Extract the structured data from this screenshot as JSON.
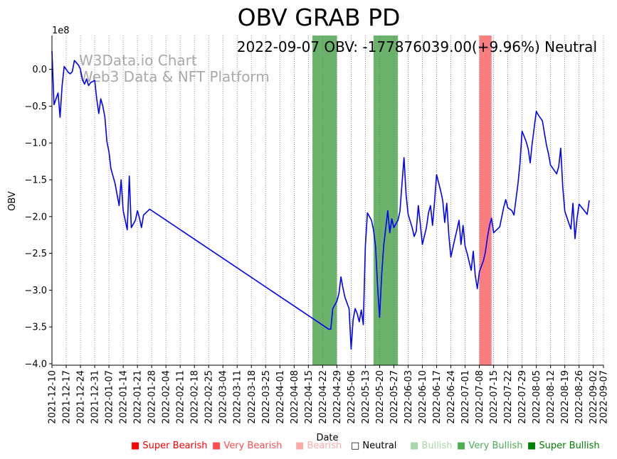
{
  "chart_data": {
    "type": "line",
    "title": "OBV GRAB PD",
    "annotation": "2022-09-07 OBV: -177876039.00(+9.96%) Neutral",
    "watermark": [
      "W3Data.io Chart",
      "Web3 Data & NFT Platform"
    ],
    "xlabel": "Date",
    "ylabel": "OBV",
    "y_multiplier_label": "1e8",
    "ylim": [
      -4.02,
      0.46
    ],
    "y_ticks": [
      0.0,
      -0.5,
      -1.0,
      -1.5,
      -2.0,
      -2.5,
      -3.0,
      -3.5,
      -4.0
    ],
    "y_tick_labels": [
      "0.0",
      "−0.5",
      "−1.0",
      "−1.5",
      "−2.0",
      "−2.5",
      "−3.0",
      "−3.5",
      "−4.0"
    ],
    "x_tick_labels": [
      "2021-12-10",
      "2021-12-17",
      "2021-12-24",
      "2021-12-31",
      "2022-01-07",
      "2022-01-14",
      "2022-01-21",
      "2022-01-28",
      "2022-02-04",
      "2022-02-11",
      "2022-02-18",
      "2022-02-25",
      "2022-03-04",
      "2022-03-11",
      "2022-03-18",
      "2022-03-25",
      "2022-04-01",
      "2022-04-08",
      "2022-04-15",
      "2022-04-22",
      "2022-04-29",
      "2022-05-06",
      "2022-05-13",
      "2022-05-20",
      "2022-05-27",
      "2022-06-03",
      "2022-06-10",
      "2022-06-17",
      "2022-06-24",
      "2022-07-01",
      "2022-07-08",
      "2022-07-15",
      "2022-07-22",
      "2022-07-29",
      "2022-08-05",
      "2022-08-12",
      "2022-08-19",
      "2022-08-26",
      "2022-09-02",
      "2022-09-07"
    ],
    "grid": "vertical dotted at x ticks",
    "series": [
      {
        "color": "#0000ff",
        "points": [
          [
            "2021-12-10",
            0.25
          ],
          [
            "2021-12-11",
            -0.48
          ],
          [
            "2021-12-13",
            -0.32
          ],
          [
            "2021-12-14",
            -0.65
          ],
          [
            "2021-12-15",
            -0.22
          ],
          [
            "2021-12-16",
            0.04
          ],
          [
            "2021-12-18",
            -0.04
          ],
          [
            "2021-12-19",
            -0.06
          ],
          [
            "2021-12-20",
            -0.03
          ],
          [
            "2021-12-21",
            0.12
          ],
          [
            "2021-12-23",
            0.06
          ],
          [
            "2021-12-24",
            0.0
          ],
          [
            "2021-12-25",
            -0.14
          ],
          [
            "2021-12-26",
            -0.2
          ],
          [
            "2021-12-27",
            -0.13
          ],
          [
            "2021-12-28",
            -0.22
          ],
          [
            "2021-12-29",
            -0.18
          ],
          [
            "2021-12-31",
            -0.15
          ],
          [
            "2022-01-01",
            -0.4
          ],
          [
            "2022-01-02",
            -0.6
          ],
          [
            "2022-01-03",
            -0.4
          ],
          [
            "2022-01-04",
            -0.5
          ],
          [
            "2022-01-05",
            -0.65
          ],
          [
            "2022-01-06",
            -0.98
          ],
          [
            "2022-01-07",
            -1.12
          ],
          [
            "2022-01-08",
            -1.35
          ],
          [
            "2022-01-10",
            -1.55
          ],
          [
            "2022-01-11",
            -1.7
          ],
          [
            "2022-01-12",
            -1.85
          ],
          [
            "2022-01-13",
            -1.5
          ],
          [
            "2022-01-14",
            -1.92
          ],
          [
            "2022-01-16",
            -2.18
          ],
          [
            "2022-01-17",
            -1.45
          ],
          [
            "2022-01-18",
            -2.15
          ],
          [
            "2022-01-20",
            -2.05
          ],
          [
            "2022-01-21",
            -1.92
          ],
          [
            "2022-01-22",
            -2.02
          ],
          [
            "2022-01-23",
            -2.15
          ],
          [
            "2022-01-24",
            -1.98
          ],
          [
            "2022-01-27",
            -1.9
          ],
          [
            "2022-04-25",
            -3.53
          ],
          [
            "2022-04-26",
            -3.53
          ],
          [
            "2022-04-27",
            -3.25
          ],
          [
            "2022-04-28",
            -3.2
          ],
          [
            "2022-04-29",
            -3.15
          ],
          [
            "2022-04-30",
            -3.05
          ],
          [
            "2022-05-01",
            -2.82
          ],
          [
            "2022-05-02",
            -2.97
          ],
          [
            "2022-05-03",
            -3.1
          ],
          [
            "2022-05-05",
            -3.25
          ],
          [
            "2022-05-06",
            -3.8
          ],
          [
            "2022-05-07",
            -3.4
          ],
          [
            "2022-05-08",
            -3.25
          ],
          [
            "2022-05-09",
            -3.32
          ],
          [
            "2022-05-10",
            -3.43
          ],
          [
            "2022-05-11",
            -3.27
          ],
          [
            "2022-05-12",
            -3.47
          ],
          [
            "2022-05-13",
            -2.4
          ],
          [
            "2022-05-14",
            -1.95
          ],
          [
            "2022-05-16",
            -2.05
          ],
          [
            "2022-05-17",
            -2.18
          ],
          [
            "2022-05-18",
            -2.4
          ],
          [
            "2022-05-19",
            -2.95
          ],
          [
            "2022-05-20",
            -3.37
          ],
          [
            "2022-05-21",
            -2.8
          ],
          [
            "2022-05-22",
            -2.4
          ],
          [
            "2022-05-24",
            -1.92
          ],
          [
            "2022-05-25",
            -2.22
          ],
          [
            "2022-05-26",
            -2.03
          ],
          [
            "2022-05-27",
            -2.15
          ],
          [
            "2022-05-29",
            -2.05
          ],
          [
            "2022-05-30",
            -1.93
          ],
          [
            "2022-05-31",
            -1.55
          ],
          [
            "2022-06-01",
            -1.2
          ],
          [
            "2022-06-02",
            -1.7
          ],
          [
            "2022-06-03",
            -1.97
          ],
          [
            "2022-06-05",
            -2.15
          ],
          [
            "2022-06-06",
            -2.27
          ],
          [
            "2022-06-07",
            -2.2
          ],
          [
            "2022-06-08",
            -1.85
          ],
          [
            "2022-06-09",
            -2.1
          ],
          [
            "2022-06-10",
            -2.38
          ],
          [
            "2022-06-12",
            -2.15
          ],
          [
            "2022-06-13",
            -1.95
          ],
          [
            "2022-06-14",
            -1.85
          ],
          [
            "2022-06-15",
            -2.12
          ],
          [
            "2022-06-16",
            -1.8
          ],
          [
            "2022-06-17",
            -1.43
          ],
          [
            "2022-06-19",
            -1.65
          ],
          [
            "2022-06-20",
            -1.78
          ],
          [
            "2022-06-21",
            -2.08
          ],
          [
            "2022-06-22",
            -1.82
          ],
          [
            "2022-06-23",
            -2.25
          ],
          [
            "2022-06-24",
            -2.55
          ],
          [
            "2022-06-26",
            -2.3
          ],
          [
            "2022-06-27",
            -2.18
          ],
          [
            "2022-06-28",
            -2.05
          ],
          [
            "2022-06-29",
            -2.38
          ],
          [
            "2022-06-30",
            -2.12
          ],
          [
            "2022-07-01",
            -2.4
          ],
          [
            "2022-07-02",
            -2.5
          ],
          [
            "2022-07-04",
            -2.73
          ],
          [
            "2022-07-05",
            -2.47
          ],
          [
            "2022-07-06",
            -2.8
          ],
          [
            "2022-07-07",
            -2.98
          ],
          [
            "2022-07-08",
            -2.75
          ],
          [
            "2022-07-10",
            -2.6
          ],
          [
            "2022-07-11",
            -2.48
          ],
          [
            "2022-07-12",
            -2.28
          ],
          [
            "2022-07-13",
            -2.12
          ],
          [
            "2022-07-14",
            -2.02
          ],
          [
            "2022-07-15",
            -2.22
          ],
          [
            "2022-07-18",
            -2.14
          ],
          [
            "2022-07-20",
            -1.87
          ],
          [
            "2022-07-21",
            -1.77
          ],
          [
            "2022-07-22",
            -1.88
          ],
          [
            "2022-07-24",
            -1.92
          ],
          [
            "2022-07-25",
            -1.98
          ],
          [
            "2022-07-27",
            -1.55
          ],
          [
            "2022-07-28",
            -1.27
          ],
          [
            "2022-07-29",
            -0.84
          ],
          [
            "2022-07-31",
            -0.98
          ],
          [
            "2022-08-01",
            -1.08
          ],
          [
            "2022-08-02",
            -1.27
          ],
          [
            "2022-08-03",
            -1.0
          ],
          [
            "2022-08-05",
            -0.57
          ],
          [
            "2022-08-06",
            -0.62
          ],
          [
            "2022-08-08",
            -0.7
          ],
          [
            "2022-08-09",
            -0.87
          ],
          [
            "2022-08-10",
            -1.03
          ],
          [
            "2022-08-11",
            -1.15
          ],
          [
            "2022-08-12",
            -1.3
          ],
          [
            "2022-08-15",
            -1.42
          ],
          [
            "2022-08-16",
            -1.32
          ],
          [
            "2022-08-17",
            -1.07
          ],
          [
            "2022-08-18",
            -1.6
          ],
          [
            "2022-08-19",
            -1.93
          ],
          [
            "2022-08-22",
            -2.17
          ],
          [
            "2022-08-23",
            -1.82
          ],
          [
            "2022-08-24",
            -2.3
          ],
          [
            "2022-08-25",
            -2.03
          ],
          [
            "2022-08-26",
            -1.83
          ],
          [
            "2022-08-28",
            -1.9
          ],
          [
            "2022-08-30",
            -1.97
          ],
          [
            "2022-08-31",
            -1.78
          ]
        ]
      }
    ],
    "spans": [
      {
        "start": "2022-04-17",
        "end": "2022-04-29",
        "color": "#6bb36b"
      },
      {
        "start": "2022-05-17",
        "end": "2022-05-29",
        "color": "#6bb36b"
      },
      {
        "start": "2022-07-08",
        "end": "2022-07-14",
        "color": "#fa7e7e"
      }
    ],
    "legend": [
      {
        "label": "Super Bearish",
        "color": "#ff0000",
        "text_color": "#ff0000"
      },
      {
        "label": "Very Bearish",
        "color": "#ff4d4d",
        "text_color": "#ff4d4d"
      },
      {
        "label": "Bearish",
        "color": "#ffaaaa",
        "text_color": "#ffaaaa"
      },
      {
        "label": "Neutral",
        "color": "none",
        "text_color": "#000000"
      },
      {
        "label": "Bullish",
        "color": "#a9d8a9",
        "text_color": "#a9d8a9"
      },
      {
        "label": "Very Bullish",
        "color": "#4caf50",
        "text_color": "#4caf50"
      },
      {
        "label": "Super Bullish",
        "color": "#008000",
        "text_color": "#008000"
      }
    ]
  }
}
